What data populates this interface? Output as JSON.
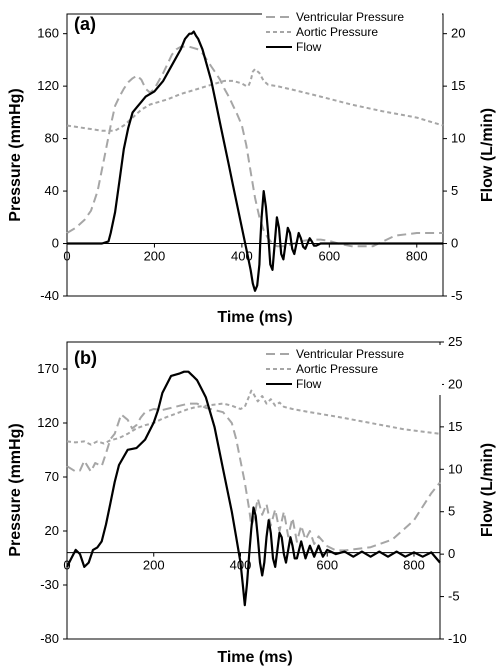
{
  "chart_data": [
    {
      "type": "line",
      "panel_label": "(a)",
      "xlabel": "Time (ms)",
      "ylabel": "Pressure (mmHg)",
      "y2label": "Flow (L/min)",
      "xlim": [
        0,
        860
      ],
      "ylim": [
        -40,
        175
      ],
      "y2lim": [
        -5,
        21.875
      ],
      "xticks": [
        0,
        200,
        400,
        600,
        800
      ],
      "yticks": [
        -40,
        0,
        40,
        80,
        120,
        160
      ],
      "y2ticks": [
        -5,
        0,
        5,
        10,
        15,
        20
      ],
      "legend_position": "top-right",
      "grid": false,
      "series": [
        {
          "name": "Ventricular Pressure",
          "axis": "left",
          "style": "long-dash",
          "color": "#a6a6a6",
          "x": [
            0,
            20,
            40,
            55,
            70,
            85,
            100,
            110,
            120,
            130,
            140,
            150,
            160,
            170,
            180,
            190,
            200,
            210,
            220,
            230,
            240,
            250,
            260,
            270,
            280,
            290,
            300,
            310,
            320,
            330,
            340,
            350,
            360,
            370,
            380,
            390,
            400,
            410,
            420,
            430,
            440,
            450,
            460,
            470,
            480,
            490,
            500,
            510,
            520,
            530,
            540,
            560,
            580,
            600,
            620,
            650,
            700,
            750,
            800,
            860
          ],
          "y": [
            8,
            12,
            18,
            25,
            40,
            65,
            90,
            105,
            112,
            118,
            123,
            126,
            128,
            125,
            118,
            115,
            118,
            124,
            130,
            137,
            144,
            148,
            150,
            150,
            150,
            149,
            148,
            145,
            140,
            135,
            130,
            125,
            118,
            112,
            105,
            98,
            90,
            75,
            55,
            35,
            20,
            10,
            4,
            0,
            -2,
            -2,
            -2,
            -1,
            0,
            1,
            2,
            3,
            3,
            2,
            0,
            -2,
            -2,
            6,
            8,
            8
          ]
        },
        {
          "name": "Aortic Pressure",
          "axis": "left",
          "style": "short-dash",
          "color": "#a6a6a6",
          "x": [
            0,
            40,
            80,
            110,
            130,
            150,
            170,
            190,
            210,
            230,
            260,
            290,
            320,
            340,
            360,
            380,
            400,
            410,
            415,
            420,
            425,
            430,
            440,
            450,
            460,
            480,
            520,
            580,
            650,
            720,
            800,
            860
          ],
          "y": [
            90,
            88,
            86,
            86,
            90,
            96,
            102,
            106,
            108,
            110,
            114,
            117,
            120,
            122,
            124,
            124,
            122,
            120,
            120,
            124,
            131,
            133,
            130,
            124,
            121,
            120,
            117,
            112,
            106,
            101,
            96,
            90
          ]
        },
        {
          "name": "Flow",
          "axis": "right",
          "style": "solid",
          "color": "#000000",
          "x": [
            0,
            40,
            80,
            95,
            100,
            110,
            120,
            130,
            140,
            150,
            160,
            170,
            180,
            200,
            220,
            240,
            260,
            270,
            280,
            285,
            290,
            295,
            300,
            310,
            320,
            330,
            340,
            350,
            360,
            370,
            380,
            390,
            400,
            410,
            420,
            425,
            430,
            435,
            440,
            442,
            445,
            450,
            455,
            460,
            465,
            470,
            475,
            480,
            485,
            490,
            495,
            500,
            505,
            510,
            515,
            520,
            525,
            530,
            535,
            540,
            545,
            550,
            555,
            560,
            565,
            570,
            580,
            600,
            700,
            800,
            860
          ],
          "y": [
            0,
            0,
            0,
            0.2,
            1,
            3,
            6,
            9,
            11,
            12.5,
            13,
            13.5,
            14,
            14.5,
            15.5,
            17,
            18.5,
            19.5,
            20,
            20,
            20.2,
            19.8,
            19.5,
            18.5,
            17,
            15.5,
            13.5,
            11.5,
            9.5,
            7.5,
            5.5,
            3.5,
            1.5,
            -0.5,
            -2.5,
            -3.8,
            -4.5,
            -4.0,
            -2.0,
            0,
            2.5,
            5.0,
            3.5,
            1.0,
            -2.0,
            -2.5,
            0,
            2.5,
            1.5,
            -1.0,
            -1.5,
            0,
            1.5,
            1.0,
            -0.5,
            -1.0,
            0,
            1.0,
            0.5,
            -0.3,
            -0.5,
            0,
            0.5,
            0.2,
            -0.2,
            -0.2,
            0,
            0,
            0,
            0,
            0
          ]
        }
      ]
    },
    {
      "type": "line",
      "panel_label": "(b)",
      "xlabel": "Time (ms)",
      "ylabel": "Pressure (mmHg)",
      "y2label": "Flow (L/min)",
      "xlim": [
        0,
        860
      ],
      "ylim": [
        -80,
        195
      ],
      "y2lim": [
        -10,
        25
      ],
      "xticks": [
        0,
        200,
        400,
        600,
        800
      ],
      "yticks": [
        -80,
        -30,
        20,
        70,
        120,
        170
      ],
      "y2ticks": [
        -10,
        -5,
        0,
        5,
        10,
        15,
        20,
        25
      ],
      "legend_position": "top-right",
      "grid": false,
      "series": [
        {
          "name": "Ventricular Pressure",
          "axis": "left",
          "style": "long-dash",
          "color": "#a6a6a6",
          "x": [
            0,
            20,
            30,
            40,
            55,
            65,
            80,
            90,
            100,
            110,
            125,
            140,
            150,
            160,
            170,
            180,
            200,
            220,
            240,
            260,
            280,
            300,
            320,
            340,
            360,
            380,
            390,
            400,
            410,
            420,
            425,
            430,
            440,
            450,
            460,
            470,
            480,
            490,
            500,
            510,
            520,
            530,
            540,
            550,
            560,
            570,
            580,
            600,
            620,
            640,
            660,
            700,
            750,
            800,
            840,
            860
          ],
          "y": [
            80,
            75,
            76,
            85,
            75,
            83,
            80,
            92,
            105,
            110,
            128,
            123,
            115,
            118,
            125,
            130,
            133,
            132,
            134,
            136,
            138,
            138,
            134,
            132,
            130,
            120,
            105,
            85,
            65,
            40,
            25,
            30,
            50,
            35,
            45,
            25,
            40,
            20,
            38,
            15,
            32,
            10,
            25,
            12,
            20,
            8,
            15,
            6,
            2,
            2,
            3,
            5,
            12,
            30,
            55,
            65
          ]
        },
        {
          "name": "Aortic Pressure",
          "axis": "left",
          "style": "short-dash",
          "color": "#a6a6a6",
          "x": [
            0,
            20,
            40,
            55,
            70,
            85,
            100,
            120,
            140,
            160,
            180,
            200,
            220,
            240,
            260,
            280,
            300,
            320,
            340,
            360,
            380,
            400,
            410,
            420,
            425,
            430,
            440,
            450,
            460,
            470,
            480,
            490,
            500,
            520,
            560,
            620,
            700,
            780,
            860
          ],
          "y": [
            103,
            102,
            103,
            100,
            103,
            101,
            104,
            106,
            110,
            115,
            118,
            120,
            124,
            127,
            130,
            133,
            135,
            136,
            137,
            138,
            136,
            133,
            135,
            145,
            150,
            147,
            140,
            145,
            138,
            142,
            136,
            139,
            135,
            133,
            130,
            126,
            120,
            114,
            110
          ]
        },
        {
          "name": "Flow",
          "axis": "right",
          "style": "solid",
          "color": "#000000",
          "x": [
            0,
            10,
            20,
            30,
            40,
            50,
            60,
            70,
            80,
            90,
            100,
            110,
            120,
            140,
            160,
            180,
            200,
            210,
            220,
            240,
            260,
            270,
            280,
            290,
            300,
            310,
            320,
            340,
            360,
            380,
            390,
            400,
            405,
            410,
            415,
            420,
            425,
            430,
            435,
            440,
            445,
            450,
            455,
            460,
            465,
            470,
            475,
            480,
            485,
            490,
            495,
            500,
            505,
            510,
            515,
            520,
            525,
            530,
            540,
            550,
            560,
            570,
            580,
            590,
            600,
            620,
            640,
            660,
            680,
            700,
            720,
            740,
            760,
            780,
            800,
            820,
            840,
            860
          ],
          "y": [
            -1.5,
            -0.5,
            0.5,
            0,
            -1.5,
            -1.0,
            0.5,
            0.8,
            1.5,
            3.5,
            6.0,
            8.5,
            10.5,
            12.3,
            12.5,
            13.5,
            15.5,
            17,
            19,
            21,
            21.3,
            21.5,
            21.5,
            21,
            20.5,
            19.5,
            18.5,
            15,
            10,
            5,
            2,
            -1,
            -3.5,
            -6,
            -3.5,
            0,
            3.0,
            5.5,
            4.5,
            2.0,
            -1.0,
            -2.5,
            -1.0,
            2.0,
            4.0,
            2.5,
            -0.5,
            -1.5,
            0.5,
            2.5,
            2.0,
            0,
            -1.0,
            0.5,
            2.0,
            1.0,
            -0.5,
            -0.5,
            1.5,
            -0.5,
            1.0,
            -0.3,
            1.0,
            -0.3,
            0.5,
            0,
            0.3,
            -0.3,
            0.3,
            -0.3,
            0.3,
            -0.3,
            0.3,
            -0.3,
            0.2,
            -0.3,
            0.2,
            -1.0
          ]
        }
      ]
    }
  ]
}
